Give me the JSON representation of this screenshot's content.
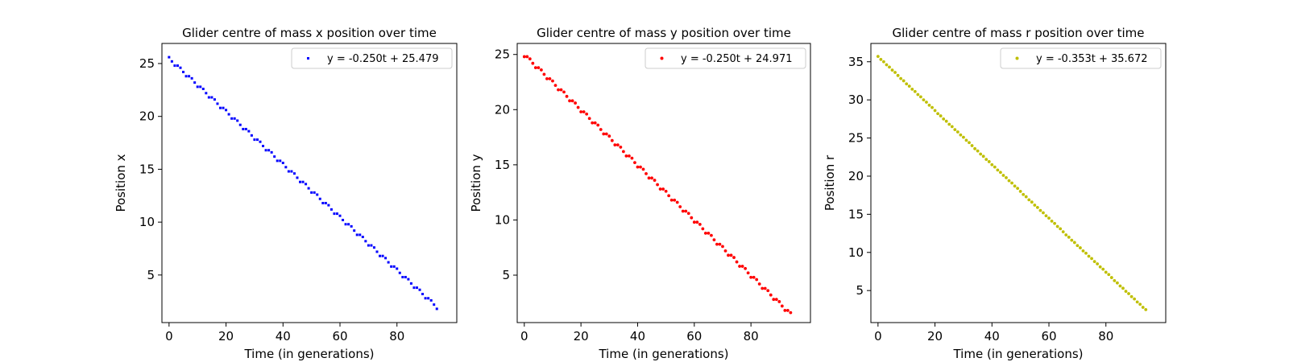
{
  "chart_data": [
    {
      "type": "scatter",
      "title": "Glider centre of mass x position over time",
      "xlabel": "Time (in generations)",
      "ylabel": "Position x",
      "xlim": [
        -2.5,
        101
      ],
      "ylim": [
        0.5,
        26.9
      ],
      "xticks": [
        "0",
        "20",
        "40",
        "60",
        "80"
      ],
      "yticks": [
        "5",
        "10",
        "15",
        "20",
        "25"
      ],
      "legend": "upper right",
      "color": "#0000ff",
      "series": [
        {
          "name": "y = -0.250t + 25.479",
          "x": [
            0,
            1,
            2,
            3,
            4,
            5,
            6,
            7,
            8,
            9,
            10,
            11,
            12,
            13,
            14,
            15,
            16,
            17,
            18,
            19,
            20,
            21,
            22,
            23,
            24,
            25,
            26,
            27,
            28,
            29,
            30,
            31,
            32,
            33,
            34,
            35,
            36,
            37,
            38,
            39,
            40,
            41,
            42,
            43,
            44,
            45,
            46,
            47,
            48,
            49,
            50,
            51,
            52,
            53,
            54,
            55,
            56,
            57,
            58,
            59,
            60,
            61,
            62,
            63,
            64,
            65,
            66,
            67,
            68,
            69,
            70,
            71,
            72,
            73,
            74,
            75,
            76,
            77,
            78,
            79,
            80,
            81,
            82,
            83,
            84,
            85,
            86,
            87,
            88,
            89,
            90,
            91,
            92,
            93,
            94
          ],
          "y": [
            25.6,
            25.2,
            24.8,
            24.8,
            24.6,
            24.2,
            23.8,
            23.8,
            23.6,
            23.2,
            22.8,
            22.8,
            22.6,
            22.2,
            21.8,
            21.8,
            21.6,
            21.2,
            20.8,
            20.8,
            20.6,
            20.2,
            19.8,
            19.8,
            19.6,
            19.2,
            18.8,
            18.8,
            18.6,
            18.2,
            17.8,
            17.8,
            17.6,
            17.2,
            16.8,
            16.8,
            16.6,
            16.2,
            15.8,
            15.8,
            15.6,
            15.2,
            14.8,
            14.8,
            14.6,
            14.2,
            13.8,
            13.8,
            13.6,
            13.2,
            12.8,
            12.8,
            12.6,
            12.2,
            11.8,
            11.8,
            11.6,
            11.2,
            10.8,
            10.8,
            10.6,
            10.2,
            9.8,
            9.8,
            9.6,
            9.2,
            8.8,
            8.8,
            8.6,
            8.2,
            7.8,
            7.8,
            7.6,
            7.2,
            6.8,
            6.8,
            6.6,
            6.2,
            5.8,
            5.8,
            5.6,
            5.2,
            4.8,
            4.8,
            4.6,
            4.2,
            3.8,
            3.8,
            3.6,
            3.2,
            2.8,
            2.8,
            2.6,
            2.2,
            1.8
          ]
        }
      ]
    },
    {
      "type": "scatter",
      "title": "Glider centre of mass y position over time",
      "xlabel": "Time (in generations)",
      "ylabel": "Position y",
      "xlim": [
        -2.5,
        101
      ],
      "ylim": [
        0.7,
        26.0
      ],
      "xticks": [
        "0",
        "20",
        "40",
        "60",
        "80"
      ],
      "yticks": [
        "5",
        "10",
        "15",
        "20",
        "25"
      ],
      "legend": "upper right",
      "color": "#ff0000",
      "series": [
        {
          "name": "y = -0.250t + 24.971",
          "x": [
            0,
            1,
            2,
            3,
            4,
            5,
            6,
            7,
            8,
            9,
            10,
            11,
            12,
            13,
            14,
            15,
            16,
            17,
            18,
            19,
            20,
            21,
            22,
            23,
            24,
            25,
            26,
            27,
            28,
            29,
            30,
            31,
            32,
            33,
            34,
            35,
            36,
            37,
            38,
            39,
            40,
            41,
            42,
            43,
            44,
            45,
            46,
            47,
            48,
            49,
            50,
            51,
            52,
            53,
            54,
            55,
            56,
            57,
            58,
            59,
            60,
            61,
            62,
            63,
            64,
            65,
            66,
            67,
            68,
            69,
            70,
            71,
            72,
            73,
            74,
            75,
            76,
            77,
            78,
            79,
            80,
            81,
            82,
            83,
            84,
            85,
            86,
            87,
            88,
            89,
            90,
            91,
            92,
            93,
            94
          ],
          "y": [
            24.8,
            24.8,
            24.6,
            24.2,
            23.8,
            23.8,
            23.6,
            23.2,
            22.8,
            22.8,
            22.6,
            22.2,
            21.8,
            21.8,
            21.6,
            21.2,
            20.8,
            20.8,
            20.6,
            20.2,
            19.8,
            19.8,
            19.6,
            19.2,
            18.8,
            18.8,
            18.6,
            18.2,
            17.8,
            17.8,
            17.6,
            17.2,
            16.8,
            16.8,
            16.6,
            16.2,
            15.8,
            15.8,
            15.6,
            15.2,
            14.8,
            14.8,
            14.6,
            14.2,
            13.8,
            13.8,
            13.6,
            13.2,
            12.8,
            12.8,
            12.6,
            12.2,
            11.8,
            11.8,
            11.6,
            11.2,
            10.8,
            10.8,
            10.6,
            10.2,
            9.8,
            9.8,
            9.6,
            9.2,
            8.8,
            8.8,
            8.6,
            8.2,
            7.8,
            7.8,
            7.6,
            7.2,
            6.8,
            6.8,
            6.6,
            6.2,
            5.8,
            5.8,
            5.6,
            5.2,
            4.8,
            4.8,
            4.6,
            4.2,
            3.8,
            3.8,
            3.6,
            3.2,
            2.8,
            2.8,
            2.6,
            2.2,
            1.8,
            1.8,
            1.6
          ]
        }
      ]
    },
    {
      "type": "scatter",
      "title": "Glider centre of mass r position over time",
      "xlabel": "Time (in generations)",
      "ylabel": "Position r",
      "xlim": [
        -2.5,
        101
      ],
      "ylim": [
        0.8,
        37.4
      ],
      "xticks": [
        "0",
        "20",
        "40",
        "60",
        "80"
      ],
      "yticks": [
        "5",
        "10",
        "15",
        "20",
        "25",
        "30",
        "35"
      ],
      "legend": "upper right",
      "color": "#bfbf00",
      "series": [
        {
          "name": "y = -0.353t + 35.672",
          "x": [
            0,
            1,
            2,
            3,
            4,
            5,
            6,
            7,
            8,
            9,
            10,
            11,
            12,
            13,
            14,
            15,
            16,
            17,
            18,
            19,
            20,
            21,
            22,
            23,
            24,
            25,
            26,
            27,
            28,
            29,
            30,
            31,
            32,
            33,
            34,
            35,
            36,
            37,
            38,
            39,
            40,
            41,
            42,
            43,
            44,
            45,
            46,
            47,
            48,
            49,
            50,
            51,
            52,
            53,
            54,
            55,
            56,
            57,
            58,
            59,
            60,
            61,
            62,
            63,
            64,
            65,
            66,
            67,
            68,
            69,
            70,
            71,
            72,
            73,
            74,
            75,
            76,
            77,
            78,
            79,
            80,
            81,
            82,
            83,
            84,
            85,
            86,
            87,
            88,
            89,
            90,
            91,
            92,
            93,
            94
          ],
          "y": [
            35.7,
            35.3,
            35.0,
            34.6,
            34.3,
            33.9,
            33.6,
            33.2,
            32.8,
            32.5,
            32.1,
            31.8,
            31.4,
            31.1,
            30.7,
            30.4,
            30.0,
            29.7,
            29.3,
            29.0,
            28.6,
            28.2,
            27.9,
            27.5,
            27.2,
            26.8,
            26.5,
            26.1,
            25.8,
            25.4,
            25.1,
            24.7,
            24.4,
            24.0,
            23.6,
            23.3,
            22.9,
            22.6,
            22.2,
            21.9,
            21.5,
            21.2,
            20.8,
            20.5,
            20.1,
            19.8,
            19.4,
            19.1,
            18.7,
            18.4,
            18.0,
            17.6,
            17.3,
            16.9,
            16.6,
            16.2,
            15.9,
            15.5,
            15.2,
            14.8,
            14.5,
            14.1,
            13.8,
            13.4,
            13.1,
            12.7,
            12.3,
            12.0,
            11.6,
            11.3,
            10.9,
            10.6,
            10.2,
            9.9,
            9.5,
            9.2,
            8.8,
            8.5,
            8.1,
            7.8,
            7.4,
            7.1,
            6.7,
            6.3,
            6.0,
            5.6,
            5.3,
            4.9,
            4.6,
            4.2,
            3.9,
            3.5,
            3.2,
            2.8,
            2.5
          ]
        }
      ]
    }
  ]
}
